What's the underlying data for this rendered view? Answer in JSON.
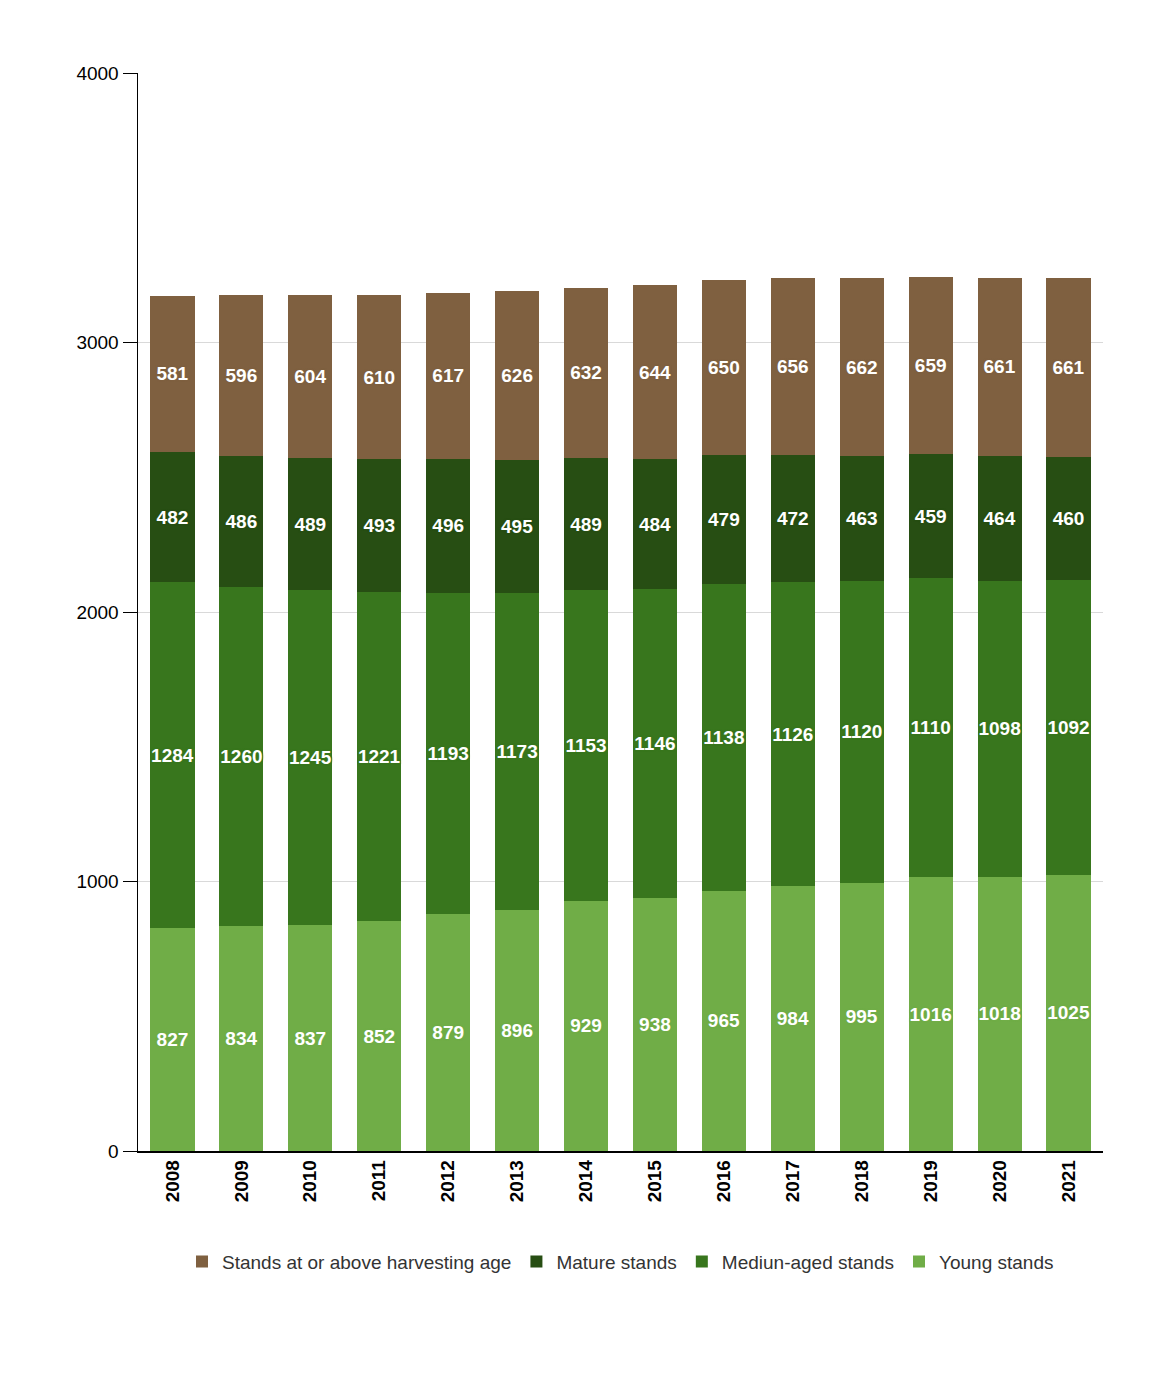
{
  "chart_data": {
    "type": "bar",
    "stacked": true,
    "data_labels": true,
    "grid": true,
    "legend": "bottom",
    "categories": [
      "2008",
      "2009",
      "2010",
      "2011",
      "2012",
      "2013",
      "2014",
      "2015",
      "2016",
      "2017",
      "2018",
      "2019",
      "2020",
      "2021"
    ],
    "series": [
      {
        "name": "Young stands",
        "color": "#70ad47",
        "values": [
          827,
          834,
          837,
          852,
          879,
          896,
          929,
          938,
          965,
          984,
          995,
          1016,
          1018,
          1025
        ]
      },
      {
        "name": "Mediun-aged stands",
        "color": "#38761d",
        "values": [
          1284,
          1260,
          1245,
          1221,
          1193,
          1173,
          1153,
          1146,
          1138,
          1126,
          1120,
          1110,
          1098,
          1092
        ]
      },
      {
        "name": "Mature stands",
        "color": "#274e13",
        "values": [
          482,
          486,
          489,
          493,
          496,
          495,
          489,
          484,
          479,
          472,
          463,
          459,
          464,
          460
        ]
      },
      {
        "name": "Stands at or above harvesting age",
        "color": "#7f6040",
        "values": [
          581,
          596,
          604,
          610,
          617,
          626,
          632,
          644,
          650,
          656,
          662,
          659,
          661,
          661
        ]
      }
    ],
    "ylim": [
      0,
      4000
    ],
    "yticks": [
      0,
      1000,
      2000,
      3000,
      4000
    ]
  }
}
